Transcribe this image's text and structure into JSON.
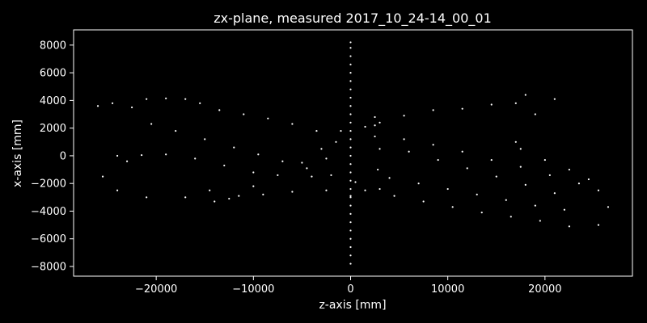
{
  "chart_data": {
    "type": "scatter",
    "title": "zx-plane, measured 2017_10_24-14_00_01",
    "xlabel": "z-axis [mm]",
    "ylabel": "x-axis [mm]",
    "xlim": [
      -28500,
      29000
    ],
    "ylim": [
      -8700,
      9100
    ],
    "xticks": [
      -20000,
      -10000,
      0,
      10000,
      20000
    ],
    "xtick_labels": [
      "−20000",
      "−10000",
      "0",
      "10000",
      "20000"
    ],
    "yticks": [
      -8000,
      -6000,
      -4000,
      -2000,
      0,
      2000,
      4000,
      6000,
      8000
    ],
    "ytick_labels": [
      "−8000",
      "−6000",
      "−4000",
      "−2000",
      "0",
      "2000",
      "4000",
      "6000",
      "8000"
    ],
    "grid": false,
    "background": "#000000",
    "point_color": "#ffffff",
    "series": [
      {
        "points": [
          [
            0,
            -7800
          ],
          [
            0,
            -7200
          ],
          [
            0,
            -6600
          ],
          [
            0,
            -6000
          ],
          [
            0,
            -5400
          ],
          [
            0,
            -4800
          ],
          [
            0,
            -4200
          ],
          [
            0,
            -3600
          ],
          [
            0,
            -3000
          ],
          [
            0,
            -2400
          ],
          [
            0,
            -1800
          ],
          [
            0,
            -1200
          ],
          [
            0,
            -600
          ],
          [
            0,
            0
          ],
          [
            0,
            600
          ],
          [
            0,
            1200
          ],
          [
            0,
            1800
          ],
          [
            0,
            2400
          ],
          [
            0,
            3000
          ],
          [
            0,
            3600
          ],
          [
            0,
            4200
          ],
          [
            0,
            4800
          ],
          [
            0,
            5400
          ],
          [
            0,
            6000
          ],
          [
            0,
            6600
          ],
          [
            0,
            7200
          ],
          [
            0,
            7800
          ],
          [
            0,
            8200
          ],
          [
            -26000,
            3600
          ],
          [
            -24500,
            3800
          ],
          [
            -22500,
            3500
          ],
          [
            -21000,
            4100
          ],
          [
            -19000,
            4150
          ],
          [
            -17000,
            4100
          ],
          [
            -15500,
            3800
          ],
          [
            -13500,
            3300
          ],
          [
            -11000,
            3000
          ],
          [
            -8500,
            2700
          ],
          [
            -6000,
            2300
          ],
          [
            -3500,
            1800
          ],
          [
            -1500,
            1000
          ],
          [
            -20500,
            2300
          ],
          [
            -18000,
            1800
          ],
          [
            -15000,
            1200
          ],
          [
            -12000,
            600
          ],
          [
            -9500,
            100
          ],
          [
            -7000,
            -400
          ],
          [
            -4500,
            -900
          ],
          [
            -2000,
            -1400
          ],
          [
            500,
            -1900
          ],
          [
            3000,
            -2400
          ],
          [
            -24000,
            0
          ],
          [
            -25500,
            -1500
          ],
          [
            -24000,
            -2500
          ],
          [
            -21000,
            -3000
          ],
          [
            -17000,
            -3000
          ],
          [
            -14500,
            -2500
          ],
          [
            -14000,
            -3300
          ],
          [
            -12500,
            -3100
          ],
          [
            -10000,
            -2200
          ],
          [
            -7500,
            -1400
          ],
          [
            -5000,
            -500
          ],
          [
            -3000,
            500
          ],
          [
            -1000,
            1800
          ],
          [
            1500,
            2100
          ],
          [
            2500,
            2800
          ],
          [
            3000,
            2400
          ],
          [
            3000,
            500
          ],
          [
            2800,
            -1000
          ],
          [
            1500,
            -2500
          ],
          [
            0,
            -2900
          ],
          [
            -2500,
            -2500
          ],
          [
            -4000,
            -1500
          ],
          [
            -2500,
            -200
          ],
          [
            2500,
            1400
          ],
          [
            5500,
            1200
          ],
          [
            8500,
            800
          ],
          [
            11500,
            300
          ],
          [
            14500,
            -300
          ],
          [
            17500,
            -800
          ],
          [
            20500,
            -1400
          ],
          [
            23500,
            -2000
          ],
          [
            25500,
            -2500
          ],
          [
            26500,
            -3700
          ],
          [
            25500,
            -5000
          ],
          [
            22500,
            -5100
          ],
          [
            19500,
            -4700
          ],
          [
            16500,
            -4400
          ],
          [
            13500,
            -4100
          ],
          [
            10500,
            -3700
          ],
          [
            7500,
            -3300
          ],
          [
            4500,
            -2900
          ],
          [
            2500,
            2200
          ],
          [
            5500,
            2900
          ],
          [
            8500,
            3300
          ],
          [
            11500,
            3400
          ],
          [
            14500,
            3700
          ],
          [
            17000,
            3800
          ],
          [
            18000,
            4400
          ],
          [
            21000,
            4100
          ],
          [
            19000,
            3000
          ],
          [
            17000,
            1000
          ],
          [
            17500,
            500
          ],
          [
            20000,
            -300
          ],
          [
            22500,
            -1000
          ],
          [
            24500,
            -1700
          ],
          [
            4000,
            -1600
          ],
          [
            7000,
            -2000
          ],
          [
            10000,
            -2400
          ],
          [
            13000,
            -2800
          ],
          [
            16000,
            -3200
          ],
          [
            19000,
            -3600
          ],
          [
            22000,
            -3900
          ],
          [
            6000,
            300
          ],
          [
            9000,
            -300
          ],
          [
            12000,
            -900
          ],
          [
            15000,
            -1500
          ],
          [
            18000,
            -2100
          ],
          [
            21000,
            -2700
          ],
          [
            -6000,
            -2600
          ],
          [
            -9000,
            -2800
          ],
          [
            -11500,
            -2900
          ],
          [
            -19000,
            100
          ],
          [
            -21500,
            50
          ],
          [
            -23000,
            -400
          ],
          [
            -16000,
            -200
          ],
          [
            -13000,
            -700
          ],
          [
            -10000,
            -1200
          ]
        ]
      }
    ]
  }
}
